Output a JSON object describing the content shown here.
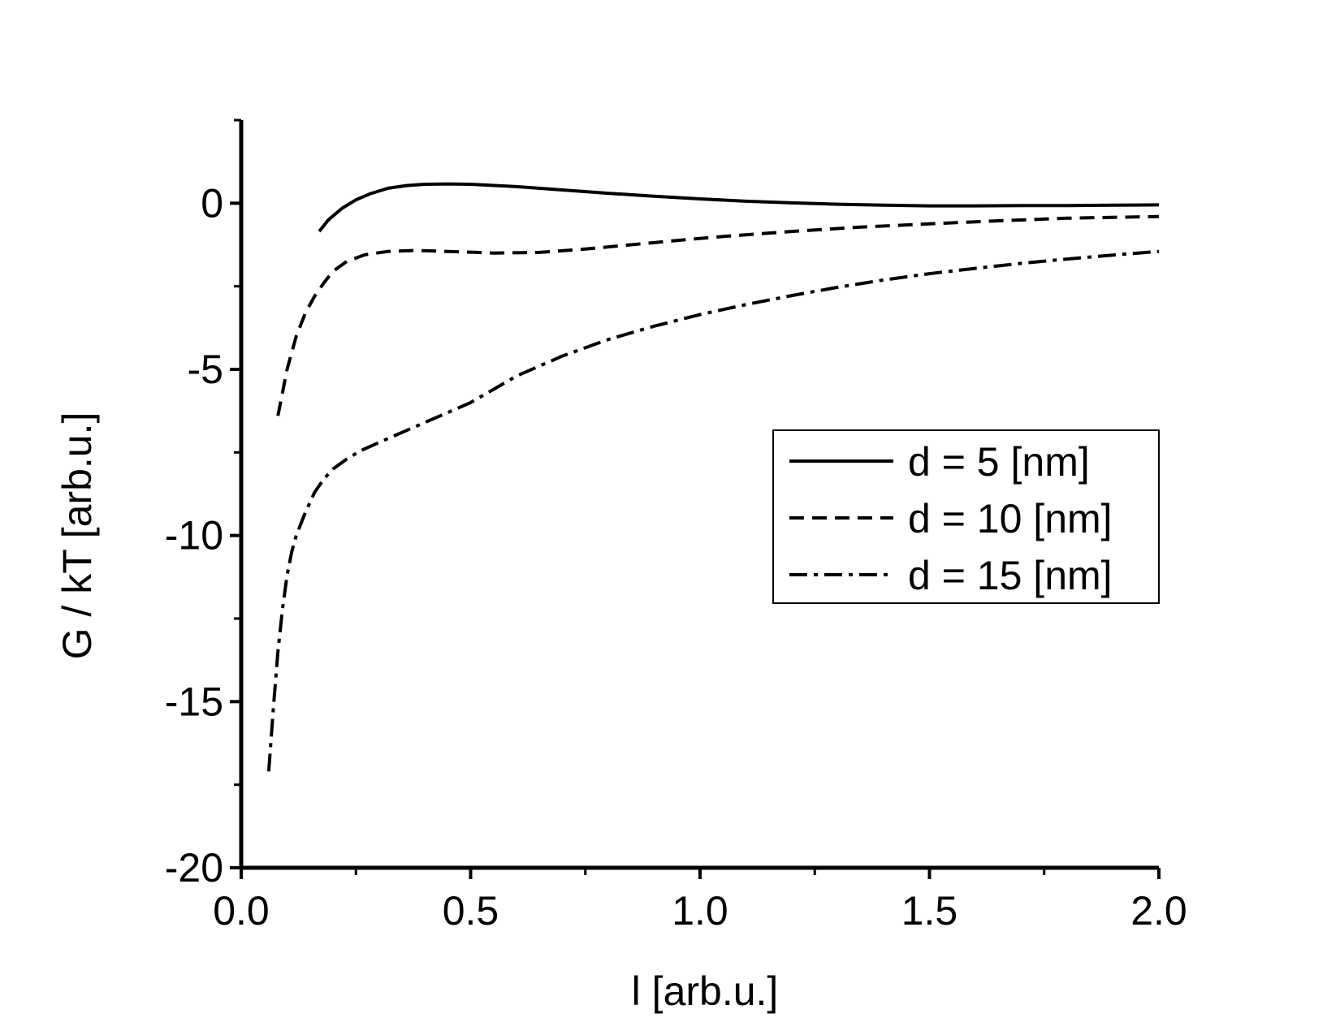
{
  "chart_data": {
    "type": "line",
    "title": "",
    "xlabel": "l [arb.u.]",
    "ylabel": "G / kT [arb.u.]",
    "xlim": [
      0.0,
      2.0
    ],
    "ylim": [
      -20,
      2.5
    ],
    "xticks": [
      0.0,
      0.5,
      1.0,
      1.5,
      2.0
    ],
    "xtick_labels": [
      "0.0",
      "0.5",
      "1.0",
      "1.5",
      "2.0"
    ],
    "yticks": [
      -20,
      -15,
      -10,
      -5,
      0
    ],
    "ytick_labels": [
      "-20",
      "-15",
      "-10",
      "-5",
      "0"
    ],
    "grid": false,
    "legend_position": "right",
    "series": [
      {
        "name": "d = 5 [nm]",
        "style": "solid",
        "x": [
          0.17,
          0.19,
          0.22,
          0.25,
          0.28,
          0.32,
          0.36,
          0.4,
          0.45,
          0.5,
          0.6,
          0.7,
          0.8,
          0.9,
          1.0,
          1.1,
          1.2,
          1.3,
          1.4,
          1.5,
          1.6,
          1.7,
          1.8,
          1.9,
          2.0
        ],
        "y": [
          -0.85,
          -0.5,
          -0.15,
          0.1,
          0.28,
          0.45,
          0.53,
          0.57,
          0.58,
          0.57,
          0.5,
          0.4,
          0.3,
          0.21,
          0.13,
          0.06,
          0.01,
          -0.03,
          -0.06,
          -0.08,
          -0.08,
          -0.07,
          -0.07,
          -0.06,
          -0.05
        ]
      },
      {
        "name": "d = 10 [nm]",
        "style": "dashed",
        "x": [
          0.08,
          0.1,
          0.12,
          0.14,
          0.16,
          0.18,
          0.2,
          0.23,
          0.27,
          0.32,
          0.38,
          0.45,
          0.55,
          0.65,
          0.75,
          0.85,
          0.95,
          1.05,
          1.2,
          1.35,
          1.5,
          1.65,
          1.8,
          2.0
        ],
        "y": [
          -6.4,
          -5.0,
          -4.0,
          -3.3,
          -2.8,
          -2.4,
          -2.05,
          -1.75,
          -1.55,
          -1.45,
          -1.42,
          -1.45,
          -1.5,
          -1.48,
          -1.38,
          -1.25,
          -1.12,
          -1.0,
          -0.85,
          -0.72,
          -0.62,
          -0.53,
          -0.45,
          -0.4
        ]
      },
      {
        "name": "d = 15 [nm]",
        "style": "dashdot",
        "x": [
          0.06,
          0.07,
          0.08,
          0.09,
          0.1,
          0.11,
          0.12,
          0.14,
          0.16,
          0.18,
          0.2,
          0.23,
          0.26,
          0.3,
          0.35,
          0.4,
          0.45,
          0.5,
          0.55,
          0.6,
          0.7,
          0.8,
          0.9,
          1.0,
          1.1,
          1.2,
          1.3,
          1.4,
          1.5,
          1.6,
          1.7,
          1.8,
          1.9,
          2.0
        ],
        "y": [
          -17.1,
          -15.2,
          -13.5,
          -12.2,
          -11.2,
          -10.5,
          -10.0,
          -9.3,
          -8.7,
          -8.3,
          -8.0,
          -7.7,
          -7.45,
          -7.2,
          -6.9,
          -6.6,
          -6.3,
          -6.0,
          -5.6,
          -5.2,
          -4.6,
          -4.1,
          -3.7,
          -3.35,
          -3.05,
          -2.78,
          -2.53,
          -2.31,
          -2.12,
          -1.96,
          -1.81,
          -1.68,
          -1.56,
          -1.45
        ]
      }
    ]
  }
}
